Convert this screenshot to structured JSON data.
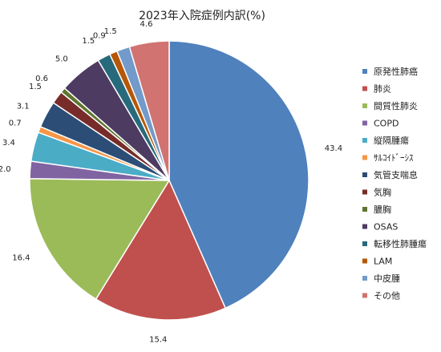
{
  "chart_data": {
    "type": "pie",
    "title": "2023年入院症例内訳(%)",
    "categories": [
      "原発性肺癌",
      "肺炎",
      "間質性肺炎",
      "COPD",
      "縦隔腫瘍",
      "ｻﾙｺｲﾄﾞｰｼｽ",
      "気管支喘息",
      "気胸",
      "膿胸",
      "OSAS",
      "転移性肺腫瘍",
      "LAM",
      "中皮腫",
      "その他"
    ],
    "values": [
      43.4,
      15.4,
      16.4,
      2.0,
      3.4,
      0.7,
      3.1,
      1.5,
      0.6,
      5.0,
      1.5,
      0.9,
      1.5,
      4.6
    ],
    "colors": [
      "#4F81BD",
      "#C0504D",
      "#9BBB59",
      "#8064A2",
      "#4BACC6",
      "#F79646",
      "#2C4D75",
      "#772C2A",
      "#5F7530",
      "#4D3B62",
      "#276A7C",
      "#B65708",
      "#729ACA",
      "#D07371"
    ],
    "legend_position": "right",
    "data_labels": true
  }
}
